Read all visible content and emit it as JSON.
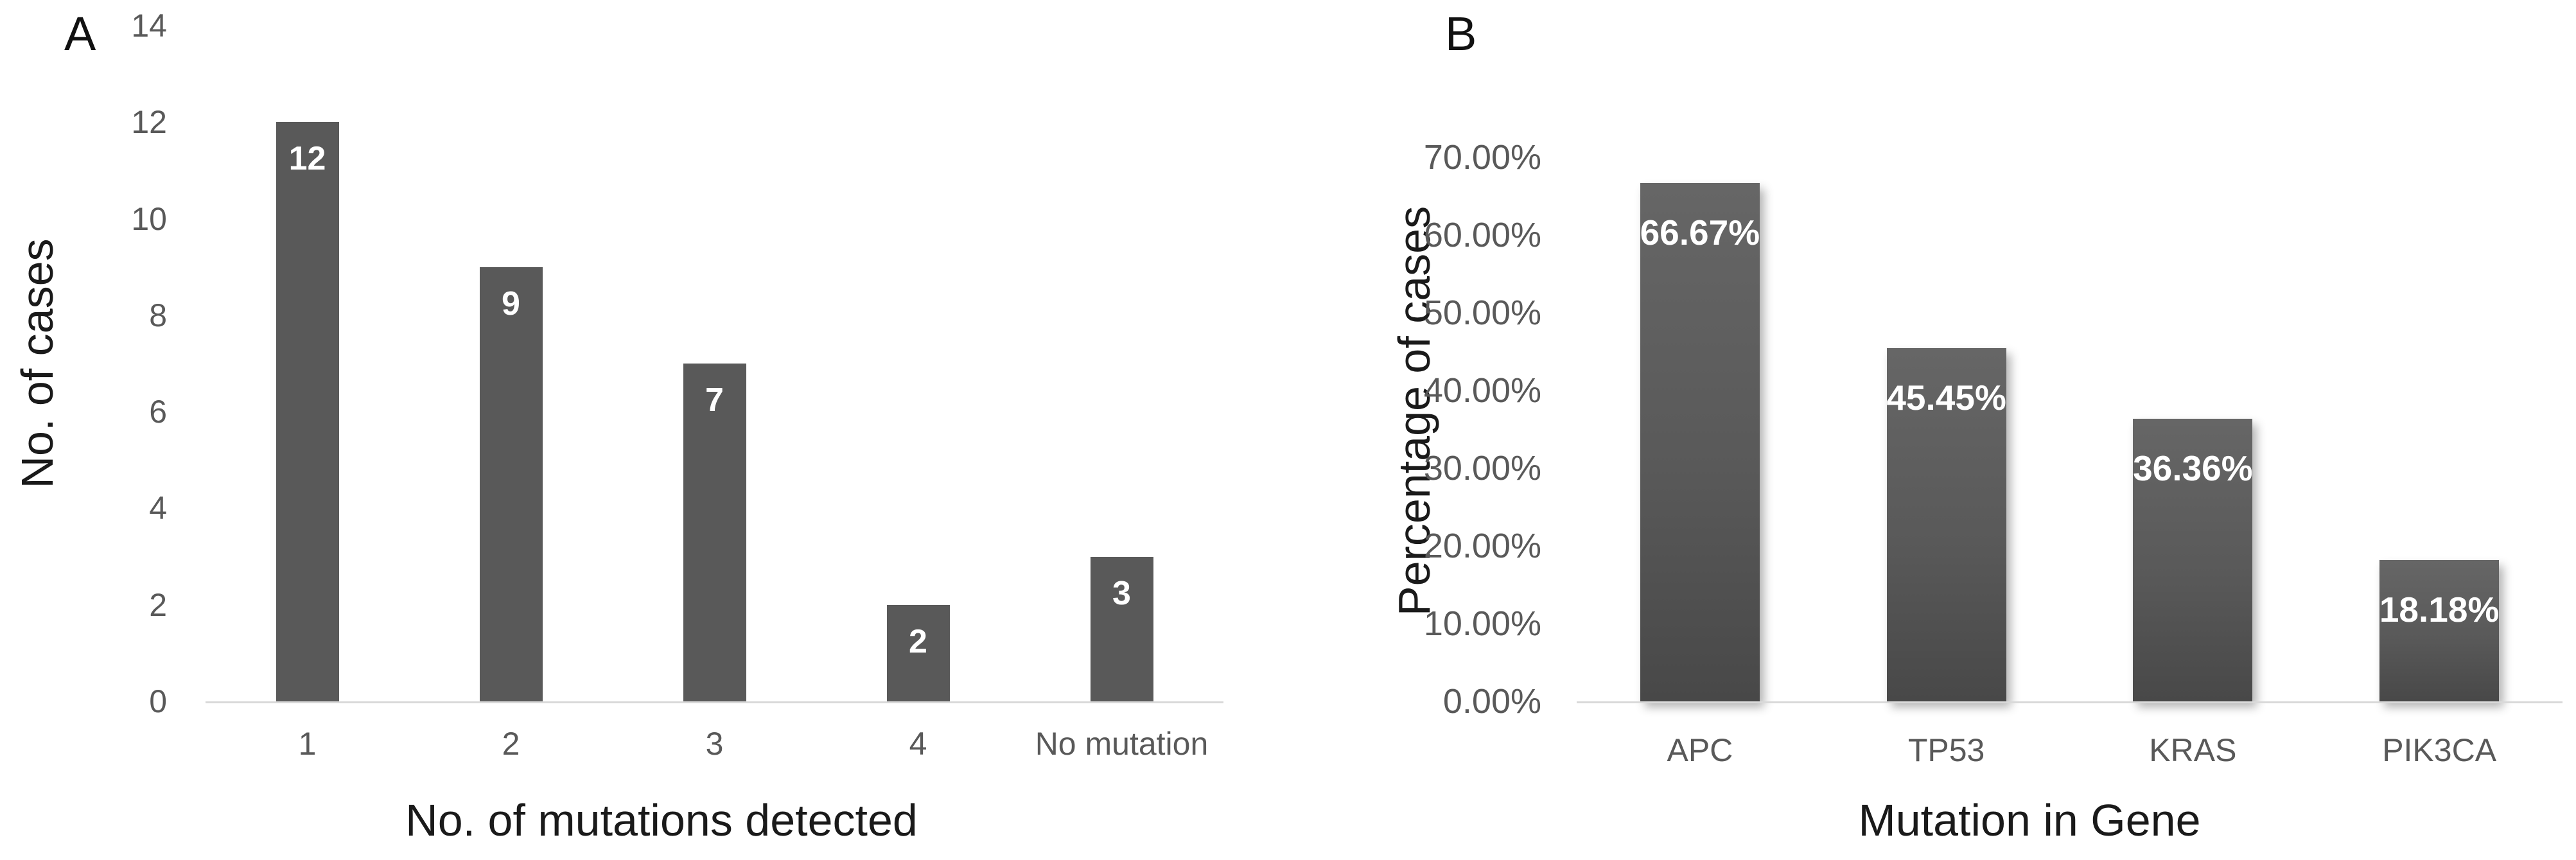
{
  "colors": {
    "background": "#ffffff",
    "bar_fill": "#595959",
    "bar_gradient_top": "#666666",
    "bar_gradient_bottom": "#484848",
    "bar_value_label": "#ffffff",
    "tick_label": "#595959",
    "axis_title": "#1a1a1a",
    "panel_label": "#111111",
    "axis_baseline": "#d9d9d9"
  },
  "chart_data": [
    {
      "panel": "A",
      "type": "bar",
      "categories": [
        "1",
        "2",
        "3",
        "4",
        "No mutation"
      ],
      "values": [
        12,
        9,
        7,
        2,
        3
      ],
      "bar_labels": [
        "12",
        "9",
        "7",
        "2",
        "3"
      ],
      "xlabel": "No. of mutations detected",
      "ylabel": "No. of cases",
      "ylim": [
        0,
        14
      ],
      "ytick_labels": [
        "14",
        "12",
        "10",
        "8",
        "6",
        "4",
        "2",
        "0"
      ],
      "grid": false,
      "legend": "none",
      "bar_style": "solid"
    },
    {
      "panel": "B",
      "type": "bar",
      "categories": [
        "APC",
        "TP53",
        "KRAS",
        "PIK3CA"
      ],
      "values": [
        66.67,
        45.45,
        36.36,
        18.18
      ],
      "bar_labels": [
        "66.67%",
        "45.45%",
        "36.36%",
        "18.18%"
      ],
      "xlabel": "Mutation in Gene",
      "ylabel": "Percentage of cases",
      "ylim": [
        0,
        70
      ],
      "ytick_labels": [
        "70.00%",
        "60.00%",
        "50.00%",
        "40.00%",
        "30.00%",
        "20.00%",
        "10.00%",
        "0.00%"
      ],
      "grid": false,
      "legend": "none",
      "bar_style": "gradient-shadow"
    }
  ]
}
